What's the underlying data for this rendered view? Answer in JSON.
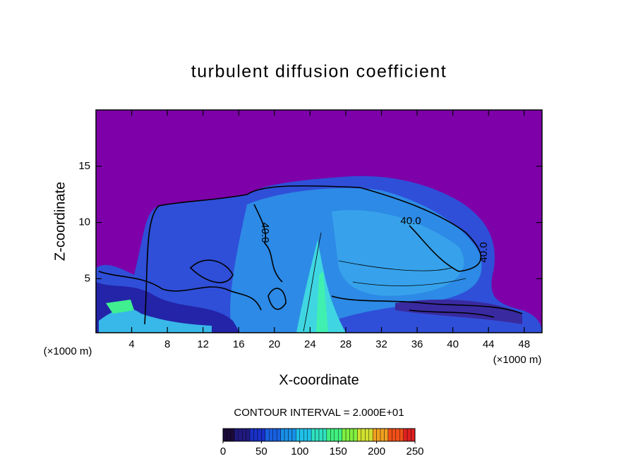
{
  "chart_data": {
    "type": "contour",
    "title": "turbulent diffusion coefficient",
    "x_label": "X-coordinate",
    "y_label": "Z-coordinate",
    "x_unit": "(×1000 m)",
    "xlim": [
      0,
      50
    ],
    "xticks": [
      4,
      8,
      12,
      16,
      20,
      24,
      28,
      32,
      36,
      40,
      44,
      48
    ],
    "ylim": [
      0.2,
      20
    ],
    "yticks": [
      5,
      10,
      15
    ],
    "contour_labels": [
      "40.0",
      "40.0",
      "40.0"
    ],
    "colorbar_title": "CONTOUR INTERVAL = 2.000E+01",
    "clim": [
      0,
      250
    ],
    "cticks": [
      0,
      50,
      100,
      150,
      200,
      250
    ],
    "colormap": [
      "#1a0a3a",
      "#201a80",
      "#1830c8",
      "#1860e0",
      "#1890e8",
      "#20c0e8",
      "#30e0c0",
      "#40f080",
      "#80f040",
      "#d0e030",
      "#f0a020",
      "#f05018",
      "#e02020"
    ]
  }
}
